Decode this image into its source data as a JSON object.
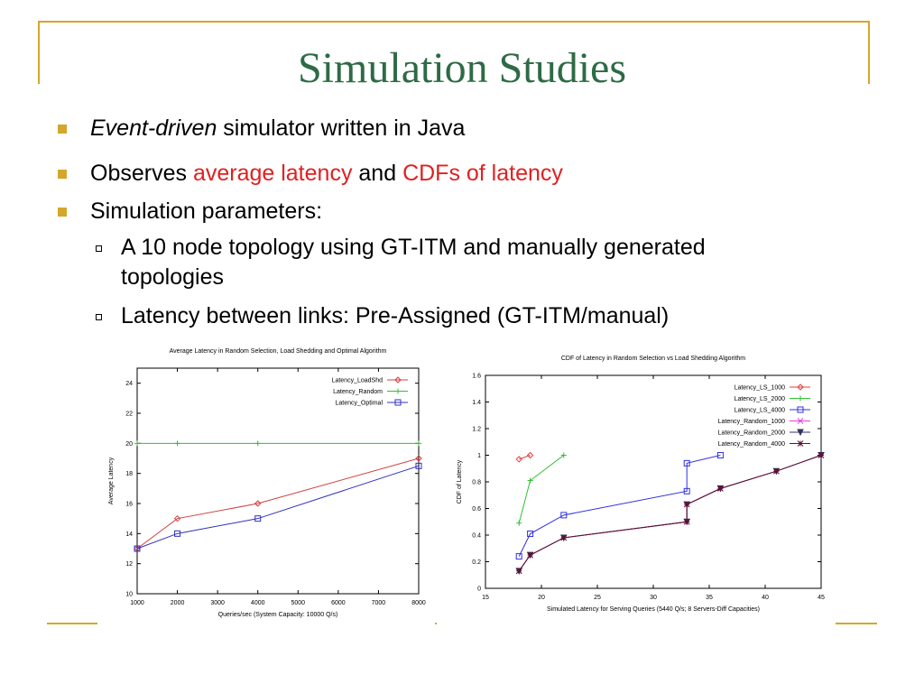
{
  "slide": {
    "title": "Simulation Studies",
    "bullets": [
      {
        "italic": "Event-driven",
        "text": " simulator written in Java"
      },
      {
        "prefix": "Observes ",
        "red1": "average latency",
        "mid": " and ",
        "red2": "CDFs of latency"
      },
      {
        "text": "Simulation parameters:"
      }
    ],
    "sub_bullets": [
      {
        "line1": "A 10 node topology using GT-ITM and manually generated",
        "line2": "topologies"
      },
      {
        "line1": "Latency between links: Pre-Assigned (GT-ITM/manual)"
      }
    ],
    "colors": {
      "title": "#2e6b45",
      "accent": "#d4a62a",
      "highlight": "#e02020"
    }
  },
  "chart_data": [
    {
      "type": "line",
      "title": "Average Latency in Random Selection, Load Shedding and Optimal Algorithm",
      "xlabel": "Queries/sec (System Capacity: 10000 Q/s)",
      "ylabel": "Average Latency",
      "xlim": [
        1000,
        8000
      ],
      "ylim": [
        10,
        25
      ],
      "xticks": [
        1000,
        2000,
        3000,
        4000,
        5000,
        6000,
        7000,
        8000
      ],
      "yticks": [
        10,
        12,
        14,
        16,
        18,
        20,
        22,
        24
      ],
      "legend_position": "top-right",
      "series": [
        {
          "name": "Latency_LoadShd",
          "color": "#d04040",
          "marker": "diamond",
          "x": [
            1000,
            2000,
            4000,
            8000
          ],
          "y": [
            13,
            15,
            16,
            19
          ]
        },
        {
          "name": "Latency_Random",
          "color": "#30c030",
          "marker": "plus",
          "x": [
            1000,
            2000,
            4000,
            8000
          ],
          "y": [
            20,
            20,
            20,
            20
          ]
        },
        {
          "name": "Latency_Optimal",
          "color": "#3030c0",
          "marker": "square",
          "x": [
            1000,
            2000,
            4000,
            8000
          ],
          "y": [
            13,
            14,
            15,
            18.5
          ]
        }
      ]
    },
    {
      "type": "line",
      "title": "CDF of Latency in Random Selection vs Load Shedding Algorithm",
      "xlabel": "Simulated Latency for Serving Queries (5440 Q/s; 8 Servers-Diff Capacities)",
      "ylabel": "CDF of Latency",
      "xlim": [
        15,
        45
      ],
      "ylim": [
        0,
        1.6
      ],
      "xticks": [
        15,
        20,
        25,
        30,
        35,
        40,
        45
      ],
      "yticks": [
        0,
        0.2,
        0.4,
        0.6,
        0.8,
        1,
        1.2,
        1.4,
        1.6
      ],
      "legend_position": "top-right",
      "series": [
        {
          "name": "Latency_LS_1000",
          "color": "#e04040",
          "marker": "diamond",
          "x": [
            18,
            19
          ],
          "y": [
            0.97,
            1.0
          ]
        },
        {
          "name": "Latency_LS_2000",
          "color": "#30c030",
          "marker": "plus",
          "x": [
            18,
            19,
            22
          ],
          "y": [
            0.49,
            0.81,
            1.0
          ]
        },
        {
          "name": "Latency_LS_4000",
          "color": "#3030e0",
          "marker": "square",
          "x": [
            18,
            19,
            22,
            33,
            33,
            36
          ],
          "y": [
            0.24,
            0.41,
            0.55,
            0.73,
            0.94,
            1.0
          ]
        },
        {
          "name": "Latency_Random_1000",
          "color": "#e040e0",
          "marker": "x",
          "x": [
            18,
            19,
            22,
            33,
            33,
            36,
            41,
            45
          ],
          "y": [
            0.13,
            0.25,
            0.38,
            0.5,
            0.63,
            0.75,
            0.88,
            1.0
          ]
        },
        {
          "name": "Latency_Random_2000",
          "color": "#303060",
          "marker": "triangle",
          "x": [
            18,
            19,
            22,
            33,
            33,
            36,
            41,
            45
          ],
          "y": [
            0.13,
            0.25,
            0.38,
            0.5,
            0.63,
            0.75,
            0.88,
            1.0
          ]
        },
        {
          "name": "Latency_Random_4000",
          "color": "#601030",
          "marker": "star",
          "x": [
            18,
            19,
            22,
            33,
            33,
            36,
            41,
            45
          ],
          "y": [
            0.13,
            0.25,
            0.38,
            0.5,
            0.63,
            0.75,
            0.88,
            1.0
          ]
        }
      ]
    }
  ]
}
